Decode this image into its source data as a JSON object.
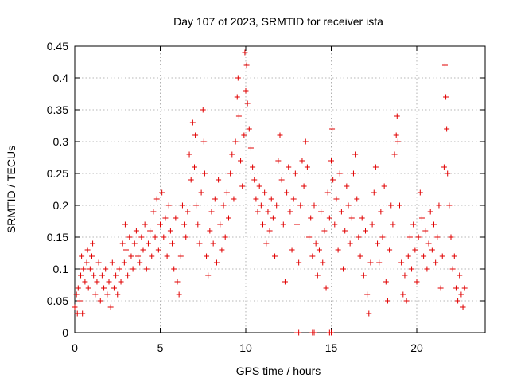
{
  "chart_data": {
    "type": "scatter",
    "title": "Day 107 of 2023, SRMTID for receiver ista",
    "xlabel": "GPS time / hours",
    "ylabel": "SRMTID / TECUs",
    "xlim": [
      0,
      24
    ],
    "ylim": [
      0,
      0.45
    ],
    "xticks": [
      "0",
      "5",
      "10",
      "15",
      "20"
    ],
    "yticks": [
      "0",
      "0.05",
      "0.1",
      "0.15",
      "0.2",
      "0.25",
      "0.3",
      "0.35",
      "0.4",
      "0.45"
    ],
    "grid": true,
    "marker": "plus",
    "color": "#e00000",
    "series": [
      {
        "points": [
          [
            0.0,
            0.04
          ],
          [
            0.1,
            0.06
          ],
          [
            0.15,
            0.03
          ],
          [
            0.2,
            0.07
          ],
          [
            0.3,
            0.05
          ],
          [
            0.35,
            0.09
          ],
          [
            0.4,
            0.12
          ],
          [
            0.45,
            0.03
          ],
          [
            0.5,
            0.1
          ],
          [
            0.6,
            0.08
          ],
          [
            0.7,
            0.11
          ],
          [
            0.75,
            0.13
          ],
          [
            0.8,
            0.07
          ],
          [
            0.9,
            0.1
          ],
          [
            1.0,
            0.12
          ],
          [
            1.05,
            0.14
          ],
          [
            1.1,
            0.09
          ],
          [
            1.2,
            0.06
          ],
          [
            1.3,
            0.08
          ],
          [
            1.4,
            0.11
          ],
          [
            1.5,
            0.05
          ],
          [
            1.6,
            0.09
          ],
          [
            1.7,
            0.07
          ],
          [
            1.8,
            0.1
          ],
          [
            1.9,
            0.06
          ],
          [
            2.0,
            0.08
          ],
          [
            2.1,
            0.04
          ],
          [
            2.2,
            0.11
          ],
          [
            2.3,
            0.07
          ],
          [
            2.4,
            0.09
          ],
          [
            2.5,
            0.06
          ],
          [
            2.6,
            0.1
          ],
          [
            2.7,
            0.08
          ],
          [
            2.8,
            0.14
          ],
          [
            2.9,
            0.11
          ],
          [
            2.95,
            0.17
          ],
          [
            3.0,
            0.13
          ],
          [
            3.1,
            0.09
          ],
          [
            3.2,
            0.15
          ],
          [
            3.3,
            0.12
          ],
          [
            3.4,
            0.1
          ],
          [
            3.5,
            0.14
          ],
          [
            3.6,
            0.16
          ],
          [
            3.7,
            0.12
          ],
          [
            3.8,
            0.11
          ],
          [
            3.9,
            0.15
          ],
          [
            4.0,
            0.13
          ],
          [
            4.1,
            0.17
          ],
          [
            4.2,
            0.1
          ],
          [
            4.3,
            0.14
          ],
          [
            4.4,
            0.16
          ],
          [
            4.5,
            0.12
          ],
          [
            4.6,
            0.19
          ],
          [
            4.7,
            0.15
          ],
          [
            4.8,
            0.21
          ],
          [
            4.9,
            0.13
          ],
          [
            5.0,
            0.17
          ],
          [
            5.1,
            0.22
          ],
          [
            5.2,
            0.15
          ],
          [
            5.3,
            0.18
          ],
          [
            5.4,
            0.12
          ],
          [
            5.5,
            0.2
          ],
          [
            5.6,
            0.16
          ],
          [
            5.7,
            0.14
          ],
          [
            5.8,
            0.1
          ],
          [
            5.9,
            0.18
          ],
          [
            6.0,
            0.08
          ],
          [
            6.1,
            0.06
          ],
          [
            6.2,
            0.12
          ],
          [
            6.3,
            0.2
          ],
          [
            6.4,
            0.17
          ],
          [
            6.5,
            0.15
          ],
          [
            6.6,
            0.19
          ],
          [
            6.7,
            0.28
          ],
          [
            6.8,
            0.24
          ],
          [
            6.9,
            0.33
          ],
          [
            7.0,
            0.26
          ],
          [
            7.05,
            0.31
          ],
          [
            7.1,
            0.2
          ],
          [
            7.2,
            0.17
          ],
          [
            7.3,
            0.14
          ],
          [
            7.4,
            0.22
          ],
          [
            7.5,
            0.35
          ],
          [
            7.55,
            0.3
          ],
          [
            7.6,
            0.25
          ],
          [
            7.7,
            0.12
          ],
          [
            7.8,
            0.09
          ],
          [
            7.9,
            0.16
          ],
          [
            8.0,
            0.19
          ],
          [
            8.1,
            0.14
          ],
          [
            8.2,
            0.21
          ],
          [
            8.3,
            0.11
          ],
          [
            8.4,
            0.24
          ],
          [
            8.5,
            0.17
          ],
          [
            8.6,
            0.13
          ],
          [
            8.7,
            0.2
          ],
          [
            8.8,
            0.15
          ],
          [
            8.9,
            0.22
          ],
          [
            9.0,
            0.18
          ],
          [
            9.1,
            0.25
          ],
          [
            9.2,
            0.28
          ],
          [
            9.3,
            0.21
          ],
          [
            9.4,
            0.3
          ],
          [
            9.5,
            0.37
          ],
          [
            9.55,
            0.4
          ],
          [
            9.6,
            0.34
          ],
          [
            9.7,
            0.27
          ],
          [
            9.8,
            0.23
          ],
          [
            9.9,
            0.31
          ],
          [
            9.95,
            0.44
          ],
          [
            10.0,
            0.38
          ],
          [
            10.05,
            0.42
          ],
          [
            10.1,
            0.36
          ],
          [
            10.2,
            0.32
          ],
          [
            10.3,
            0.29
          ],
          [
            10.4,
            0.26
          ],
          [
            10.5,
            0.24
          ],
          [
            10.6,
            0.21
          ],
          [
            10.7,
            0.19
          ],
          [
            10.8,
            0.23
          ],
          [
            10.9,
            0.2
          ],
          [
            11.0,
            0.17
          ],
          [
            11.1,
            0.22
          ],
          [
            11.2,
            0.14
          ],
          [
            11.3,
            0.19
          ],
          [
            11.4,
            0.16
          ],
          [
            11.5,
            0.21
          ],
          [
            11.6,
            0.18
          ],
          [
            11.7,
            0.12
          ],
          [
            11.8,
            0.2
          ],
          [
            11.9,
            0.27
          ],
          [
            12.0,
            0.31
          ],
          [
            12.1,
            0.24
          ],
          [
            12.2,
            0.17
          ],
          [
            12.3,
            0.08
          ],
          [
            12.4,
            0.22
          ],
          [
            12.5,
            0.26
          ],
          [
            12.6,
            0.19
          ],
          [
            12.7,
            0.13
          ],
          [
            12.8,
            0.21
          ],
          [
            12.9,
            0.25
          ],
          [
            13.0,
            0.17
          ],
          [
            13.1,
            0.11
          ],
          [
            13.2,
            0.2
          ],
          [
            13.3,
            0.27
          ],
          [
            13.4,
            0.23
          ],
          [
            13.5,
            0.3
          ],
          [
            13.6,
            0.26
          ],
          [
            13.7,
            0.15
          ],
          [
            13.8,
            0.18
          ],
          [
            13.9,
            0.12
          ],
          [
            14.0,
            0.2
          ],
          [
            14.1,
            0.14
          ],
          [
            14.2,
            0.09
          ],
          [
            14.3,
            0.13
          ],
          [
            14.4,
            0.19
          ],
          [
            14.5,
            0.11
          ],
          [
            14.6,
            0.16
          ],
          [
            14.7,
            0.07
          ],
          [
            14.8,
            0.22
          ],
          [
            14.9,
            0.18
          ],
          [
            15.0,
            0.27
          ],
          [
            15.05,
            0.32
          ],
          [
            15.1,
            0.24
          ],
          [
            15.2,
            0.17
          ],
          [
            15.3,
            0.21
          ],
          [
            15.4,
            0.13
          ],
          [
            15.5,
            0.25
          ],
          [
            15.6,
            0.19
          ],
          [
            15.7,
            0.1
          ],
          [
            15.8,
            0.16
          ],
          [
            15.9,
            0.23
          ],
          [
            16.0,
            0.2
          ],
          [
            16.1,
            0.14
          ],
          [
            16.2,
            0.18
          ],
          [
            16.3,
            0.25
          ],
          [
            16.4,
            0.28
          ],
          [
            16.5,
            0.21
          ],
          [
            16.6,
            0.15
          ],
          [
            16.7,
            0.12
          ],
          [
            16.8,
            0.18
          ],
          [
            16.9,
            0.09
          ],
          [
            17.0,
            0.16
          ],
          [
            17.1,
            0.06
          ],
          [
            17.2,
            0.03
          ],
          [
            17.3,
            0.11
          ],
          [
            17.4,
            0.17
          ],
          [
            17.5,
            0.22
          ],
          [
            17.6,
            0.26
          ],
          [
            17.7,
            0.14
          ],
          [
            17.8,
            0.11
          ],
          [
            17.9,
            0.19
          ],
          [
            18.0,
            0.15
          ],
          [
            18.1,
            0.23
          ],
          [
            18.2,
            0.08
          ],
          [
            18.3,
            0.05
          ],
          [
            18.4,
            0.13
          ],
          [
            18.5,
            0.2
          ],
          [
            18.6,
            0.17
          ],
          [
            18.7,
            0.28
          ],
          [
            18.8,
            0.31
          ],
          [
            18.85,
            0.34
          ],
          [
            18.9,
            0.3
          ],
          [
            19.0,
            0.2
          ],
          [
            19.1,
            0.11
          ],
          [
            19.2,
            0.06
          ],
          [
            19.3,
            0.09
          ],
          [
            19.4,
            0.05
          ],
          [
            19.5,
            0.12
          ],
          [
            19.6,
            0.15
          ],
          [
            19.7,
            0.1
          ],
          [
            19.8,
            0.17
          ],
          [
            19.9,
            0.13
          ],
          [
            20.0,
            0.08
          ],
          [
            20.1,
            0.15
          ],
          [
            20.2,
            0.22
          ],
          [
            20.3,
            0.18
          ],
          [
            20.4,
            0.12
          ],
          [
            20.5,
            0.16
          ],
          [
            20.6,
            0.1
          ],
          [
            20.7,
            0.14
          ],
          [
            20.8,
            0.19
          ],
          [
            20.9,
            0.13
          ],
          [
            21.0,
            0.17
          ],
          [
            21.1,
            0.11
          ],
          [
            21.2,
            0.15
          ],
          [
            21.3,
            0.2
          ],
          [
            21.4,
            0.07
          ],
          [
            21.5,
            0.12
          ],
          [
            21.6,
            0.26
          ],
          [
            21.65,
            0.42
          ],
          [
            21.7,
            0.37
          ],
          [
            21.75,
            0.32
          ],
          [
            21.8,
            0.25
          ],
          [
            21.9,
            0.2
          ],
          [
            22.0,
            0.15
          ],
          [
            22.1,
            0.1
          ],
          [
            22.2,
            0.12
          ],
          [
            22.3,
            0.07
          ],
          [
            22.4,
            0.05
          ],
          [
            22.5,
            0.09
          ],
          [
            22.6,
            0.06
          ],
          [
            22.7,
            0.04
          ],
          [
            22.8,
            0.07
          ]
        ]
      },
      {
        "points": [
          [
            13.0,
            0.0
          ],
          [
            13.1,
            0.0
          ],
          [
            13.9,
            0.0
          ],
          [
            14.0,
            0.0
          ],
          [
            14.9,
            0.0
          ],
          [
            15.0,
            0.0
          ]
        ]
      }
    ]
  }
}
